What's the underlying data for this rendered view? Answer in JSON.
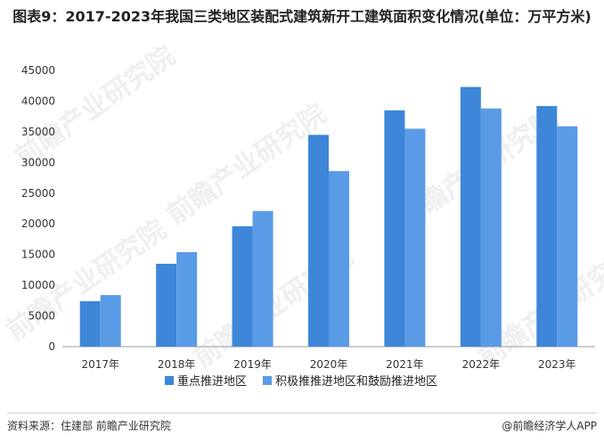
{
  "colors": {
    "series1": "#3d86d8",
    "series2": "#5a9be6",
    "axis": "#999999"
  },
  "watermark": "前瞻产业研究院",
  "footer": {
    "source": "资料来源：住建部 前瞻产业研究院",
    "brand": "@前瞻经济学人APP"
  },
  "chart_data": {
    "type": "bar",
    "title": "图表9：2017-2023年我国三类地区装配式建筑新开工建筑面积变化情况(单位：万平方米)",
    "categories": [
      "2017年",
      "2018年",
      "2019年",
      "2020年",
      "2021年",
      "2022年",
      "2023年"
    ],
    "ylim": [
      0,
      45000
    ],
    "yticks": [
      "0",
      "5000",
      "10000",
      "15000",
      "20000",
      "25000",
      "30000",
      "35000",
      "40000",
      "45000"
    ],
    "legend_position": "bottom",
    "grid": false,
    "series": [
      {
        "name": "重点推进地区",
        "values": [
          7400,
          13500,
          19600,
          34500,
          38500,
          42300,
          39200
        ]
      },
      {
        "name": "积极推推进地区和鼓励推进地区",
        "values": [
          8400,
          15400,
          22100,
          28600,
          35500,
          38800,
          35900
        ]
      }
    ]
  }
}
